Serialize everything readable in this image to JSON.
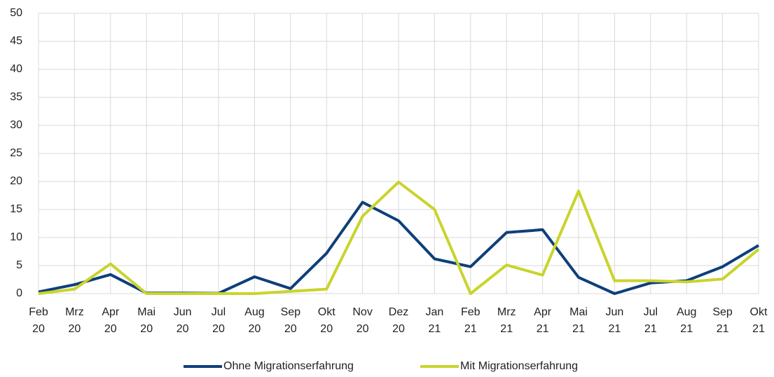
{
  "chart_data": {
    "type": "line",
    "categories": [
      "Feb 20",
      "Mrz 20",
      "Apr 20",
      "Mai 20",
      "Jun 20",
      "Jul 20",
      "Aug 20",
      "Sep 20",
      "Okt 20",
      "Nov 20",
      "Dez 20",
      "Jan 21",
      "Feb 21",
      "Mrz 21",
      "Apr 21",
      "Mai 21",
      "Jun 21",
      "Jul 21",
      "Aug 21",
      "Sep 21",
      "Okt 21"
    ],
    "series": [
      {
        "name": "Ohne Migrationserfahrung",
        "color": "#0e3f7a",
        "values": [
          0.3,
          1.6,
          3.4,
          0.1,
          0.1,
          0.05,
          3.0,
          0.9,
          7.2,
          16.3,
          13.0,
          6.2,
          4.8,
          10.9,
          11.4,
          2.9,
          0,
          1.9,
          2.3,
          4.8,
          8.6
        ]
      },
      {
        "name": "Mit Migrationserfahrung",
        "color": "#c9d42c",
        "values": [
          0,
          0.8,
          5.3,
          0,
          0,
          0,
          0,
          0.4,
          0.8,
          13.8,
          19.9,
          15.0,
          0,
          5.1,
          3.3,
          18.3,
          2.3,
          2.3,
          2.1,
          2.6,
          7.9
        ]
      }
    ],
    "ylim": [
      0,
      50
    ],
    "yticks": [
      0,
      5,
      10,
      15,
      20,
      25,
      30,
      35,
      40,
      45,
      50
    ],
    "grid": true,
    "legend": "bottom"
  }
}
